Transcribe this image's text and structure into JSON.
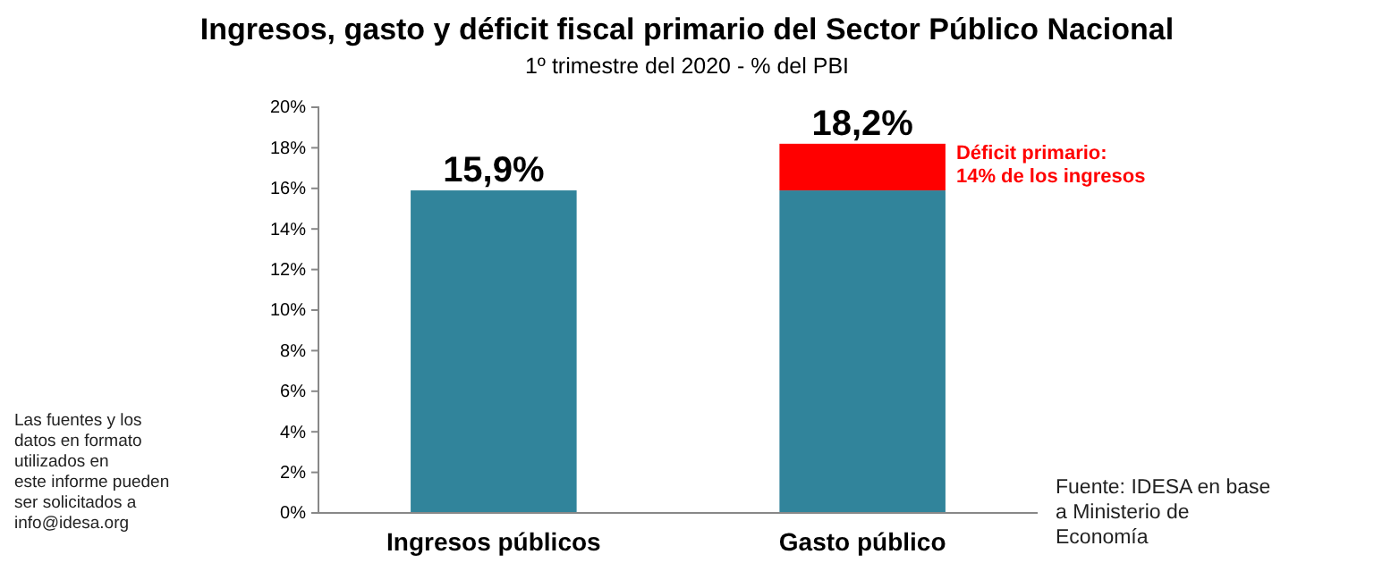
{
  "chart_data": {
    "type": "bar",
    "title": "Ingresos, gasto y déficit fiscal primario del Sector Público Nacional",
    "subtitle": "1º trimestre del 2020 - % del PBI",
    "categories": [
      "Ingresos públicos",
      "Gasto público"
    ],
    "stacked": true,
    "series": [
      {
        "color": "#31849b",
        "values": [
          15.9,
          15.9
        ]
      },
      {
        "color": "#ff0000",
        "values": [
          null,
          2.3
        ]
      }
    ],
    "totals": [
      "15,9%",
      "18,2%"
    ],
    "ylim": [
      0,
      20
    ],
    "yticks": [
      {
        "value": 0,
        "label": "0%"
      },
      {
        "value": 2,
        "label": "2%"
      },
      {
        "value": 4,
        "label": "4%"
      },
      {
        "value": 6,
        "label": "6%"
      },
      {
        "value": 8,
        "label": "8%"
      },
      {
        "value": 10,
        "label": "10%"
      },
      {
        "value": 12,
        "label": "12%"
      },
      {
        "value": 14,
        "label": "14%"
      },
      {
        "value": 16,
        "label": "16%"
      },
      {
        "value": 18,
        "label": "18%"
      },
      {
        "value": 20,
        "label": "20%"
      }
    ],
    "annotations": [
      "Déficit primario:\n14% de los ingresos",
      "Las fuentes y los\ndatos en formato\nutilizados en\neste informe pueden\nser solicitados a\ninfo@idesa.org",
      "Fuente: IDESA en base\na Ministerio de\nEconomía"
    ]
  }
}
